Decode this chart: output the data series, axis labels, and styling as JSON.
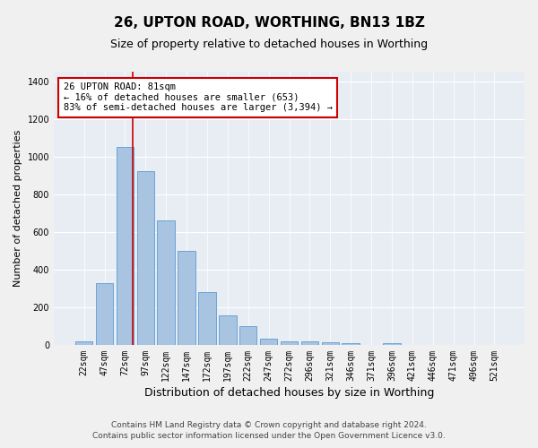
{
  "title1": "26, UPTON ROAD, WORTHING, BN13 1BZ",
  "title2": "Size of property relative to detached houses in Worthing",
  "xlabel": "Distribution of detached houses by size in Worthing",
  "ylabel": "Number of detached properties",
  "categories": [
    "22sqm",
    "47sqm",
    "72sqm",
    "97sqm",
    "122sqm",
    "147sqm",
    "172sqm",
    "197sqm",
    "222sqm",
    "247sqm",
    "272sqm",
    "296sqm",
    "321sqm",
    "346sqm",
    "371sqm",
    "396sqm",
    "421sqm",
    "446sqm",
    "471sqm",
    "496sqm",
    "521sqm"
  ],
  "values": [
    20,
    330,
    1050,
    920,
    660,
    500,
    280,
    155,
    100,
    35,
    20,
    18,
    15,
    10,
    0,
    10,
    0,
    0,
    0,
    0,
    0
  ],
  "bar_color": "#a8c4e0",
  "bar_edge_color": "#5b9bd5",
  "background_color": "#e8edf4",
  "grid_color": "#ffffff",
  "annotation_text": "26 UPTON ROAD: 81sqm\n← 16% of detached houses are smaller (653)\n83% of semi-detached houses are larger (3,394) →",
  "annotation_box_color": "#ffffff",
  "annotation_box_edge": "#cc0000",
  "vline_color": "#cc0000",
  "ylim": [
    0,
    1450
  ],
  "yticks": [
    0,
    200,
    400,
    600,
    800,
    1000,
    1200,
    1400
  ],
  "footer1": "Contains HM Land Registry data © Crown copyright and database right 2024.",
  "footer2": "Contains public sector information licensed under the Open Government Licence v3.0.",
  "title1_fontsize": 11,
  "title2_fontsize": 9,
  "xlabel_fontsize": 9,
  "ylabel_fontsize": 8,
  "tick_fontsize": 7,
  "annot_fontsize": 7.5,
  "footer_fontsize": 6.5
}
